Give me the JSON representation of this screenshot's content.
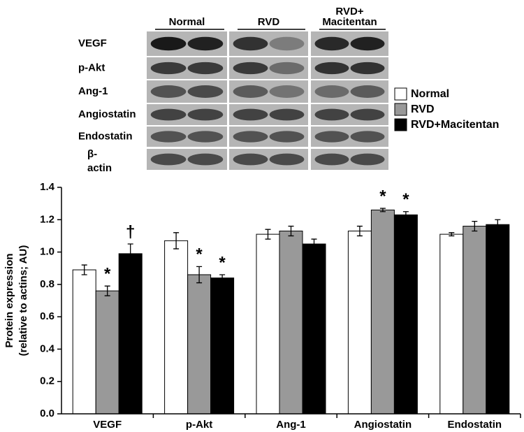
{
  "blot": {
    "groups": [
      [
        "Normal"
      ],
      [
        "RVD"
      ],
      [
        "RVD+",
        "Macitentan"
      ]
    ],
    "rows": [
      [
        "VEGF"
      ],
      [
        "p-Akt"
      ],
      [
        "Ang-1"
      ],
      [
        "Angiostatin"
      ],
      [
        "Endostatin"
      ],
      [
        "β-",
        "actin"
      ]
    ]
  },
  "chart_data": {
    "type": "bar",
    "y_label": [
      "Protein expression",
      "(relative to actins; AU)"
    ],
    "categories": [
      "VEGF",
      "p-Akt",
      "Ang-1",
      "Angiostatin",
      "Endostatin"
    ],
    "series": [
      {
        "name": "Normal",
        "color": "#ffffff",
        "values": [
          0.89,
          1.07,
          1.11,
          1.13,
          1.11
        ],
        "errors": [
          0.03,
          0.05,
          0.03,
          0.03,
          0.01
        ],
        "annotations": [
          null,
          null,
          null,
          null,
          null
        ]
      },
      {
        "name": "RVD",
        "color": "#999999",
        "values": [
          0.76,
          0.86,
          1.13,
          1.26,
          1.16
        ],
        "errors": [
          0.03,
          0.05,
          0.03,
          0.01,
          0.03
        ],
        "annotations": [
          "*",
          "*",
          null,
          "*",
          null
        ]
      },
      {
        "name": "RVD+Macitentan",
        "color": "#000000",
        "values": [
          0.99,
          0.84,
          1.05,
          1.23,
          1.17
        ],
        "errors": [
          0.06,
          0.02,
          0.03,
          0.02,
          0.03
        ],
        "annotations": [
          "†",
          "*",
          null,
          "*",
          null
        ]
      }
    ],
    "ylim": [
      0,
      1.4
    ],
    "yticks": [
      {
        "value": 0,
        "label": "0.0"
      },
      0.2,
      0.4,
      0.6,
      0.8,
      {
        "value": 1,
        "label": "1.0"
      },
      1.2,
      1.4
    ]
  }
}
